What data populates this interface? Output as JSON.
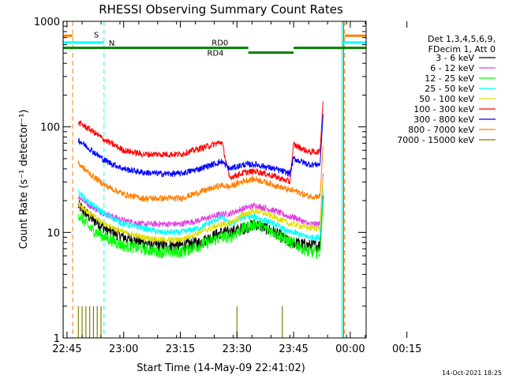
{
  "chart_data": {
    "type": "line",
    "title": "RHESSI Observing Summary Count Rates",
    "xlabel": "Start Time (14-May-09 22:41:02)",
    "ylabel": "Count Rate (s⁻¹ detector⁻¹)",
    "yscale": "log",
    "ylim": [
      1,
      1000
    ],
    "xlim_minutes": [
      -1.03,
      79.2
    ],
    "x_ticks": [
      {
        "label": "22:45",
        "min": 0
      },
      {
        "label": "23:00",
        "min": 15
      },
      {
        "label": "23:15",
        "min": 30
      },
      {
        "label": "23:30",
        "min": 45
      },
      {
        "label": "23:45",
        "min": 60
      },
      {
        "label": "00:00",
        "min": 75
      },
      {
        "label": "00:15",
        "min": 90
      }
    ],
    "y_ticks": [
      {
        "label": "1",
        "v": 1
      },
      {
        "label": "10",
        "v": 10
      },
      {
        "label": "100",
        "v": 100
      },
      {
        "label": "1000",
        "v": 1000
      }
    ],
    "legend_header": [
      "Det 1,3,4,5,6,9,",
      "FDecim 1, Att 0"
    ],
    "legend_position": "right",
    "series": [
      {
        "name": "3 - 6 keV",
        "color": "#000000",
        "x": [
          3,
          6,
          10,
          15,
          20,
          25,
          30,
          35,
          41,
          43,
          47,
          50,
          55,
          59,
          60,
          64,
          67
        ],
        "y": [
          18,
          14,
          11,
          9,
          8,
          7.5,
          7.5,
          8,
          10,
          10,
          11,
          12,
          10,
          8,
          8,
          7.5,
          7.5
        ]
      },
      {
        "name": "6 - 12 keV",
        "color": "#e040e0",
        "x": [
          3,
          6,
          10,
          15,
          20,
          25,
          30,
          35,
          41,
          43,
          47,
          50,
          55,
          59,
          60,
          64,
          67
        ],
        "y": [
          22,
          18,
          15,
          13,
          12,
          12,
          12,
          13,
          15,
          15,
          17,
          18,
          16,
          14,
          14,
          12,
          12
        ]
      },
      {
        "name": "12 - 25 keV",
        "color": "#00ff00",
        "x": [
          3,
          6,
          10,
          15,
          20,
          25,
          30,
          35,
          41,
          43,
          47,
          50,
          55,
          59,
          60,
          64,
          67
        ],
        "y": [
          15,
          11,
          9,
          7.5,
          7,
          6.5,
          6.5,
          7.5,
          9,
          9,
          11,
          12,
          10,
          8,
          8,
          6.5,
          6.5
        ]
      },
      {
        "name": "25 - 50 keV",
        "color": "#00ffff",
        "x": [
          3,
          6,
          10,
          15,
          20,
          25,
          30,
          35,
          41,
          43,
          47,
          50,
          55,
          59,
          60,
          64,
          67
        ],
        "y": [
          24,
          19,
          15,
          12,
          11,
          10,
          10,
          11,
          14,
          12,
          14,
          14,
          12,
          10,
          10,
          9,
          9
        ]
      },
      {
        "name": "50 - 100 keV",
        "color": "#e0e000",
        "x": [
          3,
          6,
          10,
          15,
          20,
          25,
          30,
          35,
          41,
          43,
          47,
          50,
          55,
          59,
          60,
          64,
          67
        ],
        "y": [
          19,
          15,
          12,
          10,
          9,
          8.5,
          8.5,
          10,
          12,
          12,
          15,
          16,
          14,
          12,
          12,
          11,
          11
        ]
      },
      {
        "name": "100 - 300 keV",
        "color": "#ff0000",
        "x": [
          3,
          6,
          10,
          15,
          20,
          25,
          30,
          35,
          41,
          43,
          47,
          50,
          55,
          59,
          60,
          64,
          67
        ],
        "y": [
          110,
          95,
          75,
          60,
          55,
          55,
          55,
          62,
          72,
          33,
          37,
          38,
          34,
          30,
          68,
          58,
          58
        ]
      },
      {
        "name": "300 - 800 keV",
        "color": "#0000ff",
        "x": [
          3,
          6,
          10,
          15,
          20,
          25,
          30,
          35,
          41,
          43,
          47,
          50,
          55,
          59,
          60,
          64,
          67
        ],
        "y": [
          75,
          62,
          48,
          40,
          37,
          36,
          36,
          40,
          47,
          40,
          44,
          44,
          40,
          36,
          50,
          44,
          44
        ]
      },
      {
        "name": "800 - 7000 keV",
        "color": "#ff8000",
        "x": [
          3,
          6,
          10,
          15,
          20,
          25,
          30,
          35,
          41,
          43,
          47,
          50,
          55,
          59,
          60,
          64,
          67
        ],
        "y": [
          45,
          36,
          28,
          23,
          21,
          21,
          21,
          24,
          28,
          27,
          31,
          32,
          28,
          25,
          25,
          22,
          22
        ]
      },
      {
        "name": "7000 - 15000 keV",
        "color": "#808000",
        "x": [
          3,
          4,
          5,
          6,
          7,
          8,
          9,
          45,
          57
        ],
        "y": [
          2,
          2,
          2,
          2,
          2,
          2,
          2,
          2,
          2
        ]
      }
    ],
    "state_bars": [
      {
        "label": "S",
        "color": "#ff8000"
      },
      {
        "label": "N",
        "color": "#00ffff"
      },
      {
        "label": "RD0",
        "color": "#008000"
      },
      {
        "label": "RD4",
        "color": "#008000"
      }
    ],
    "state_bar_segments": [
      {
        "name": "S",
        "color": "#ff8000",
        "y": 730,
        "x1": -1.03,
        "x2": 1.5
      },
      {
        "name": "S",
        "color": "#ff8000",
        "y": 730,
        "x1": 73.5,
        "x2": 79.2
      },
      {
        "name": "N",
        "color": "#00ffff",
        "y": 630,
        "x1": -1.03,
        "x2": 9.8
      },
      {
        "name": "N",
        "color": "#00ffff",
        "y": 630,
        "x1": 72.8,
        "x2": 79.2
      },
      {
        "name": "RD0",
        "color": "#008000",
        "y": 560,
        "x1": -1.03,
        "x2": 48
      },
      {
        "name": "RD0",
        "color": "#008000",
        "y": 560,
        "x1": 60,
        "x2": 79.2
      },
      {
        "name": "RD4",
        "color": "#008000",
        "y": 505,
        "x1": 48,
        "x2": 60
      }
    ],
    "vlines": [
      {
        "x": 1.5,
        "color": "#ff8000",
        "style": "dashed"
      },
      {
        "x": 9.8,
        "color": "#00ffff",
        "style": "dashed"
      },
      {
        "x": 73.5,
        "color": "#ff8000",
        "style": "dashed"
      },
      {
        "x": 79.2,
        "color": "#00ffff",
        "style": "dashed"
      },
      {
        "x": -1.0,
        "color": "#00ffff",
        "style": "solid"
      },
      {
        "x": 72.8,
        "color": "#00ffff",
        "style": "solid"
      },
      {
        "x": 73.2,
        "color": "#008000",
        "style": "solid"
      }
    ],
    "footer_date": "14-Oct-2021 18:25"
  }
}
